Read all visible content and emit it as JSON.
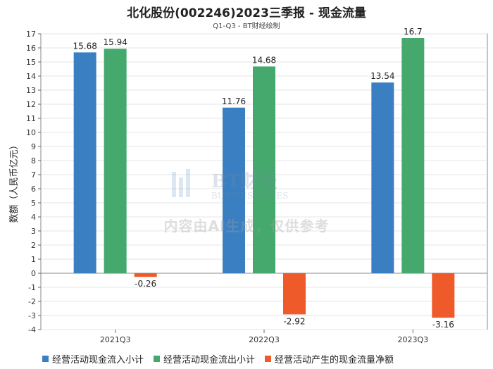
{
  "title": "北化股份(002246)2023三季报 - 现金流量",
  "subtitle": "Q1-Q3 - BT财经绘制",
  "watermark": {
    "logo_text": "BT财经",
    "logo_sub": "BUSINESSTIMES",
    "notice": "内容由AI生成，仅供参考"
  },
  "colors": {
    "series0": "#3a7fc1",
    "series1": "#45a96e",
    "series2": "#ef5a2a"
  },
  "chart_data": {
    "type": "bar",
    "title": "北化股份(002246)2023三季报 - 现金流量",
    "subtitle": "Q1-Q3 - BT财经绘制",
    "categories": [
      "2021Q3",
      "2022Q3",
      "2023Q3"
    ],
    "series": [
      {
        "name": "经营活动现金流入小计",
        "values": [
          15.68,
          11.76,
          13.54
        ]
      },
      {
        "name": "经营活动现金流出小计",
        "values": [
          15.94,
          14.68,
          16.7
        ]
      },
      {
        "name": "经营活动产生的现金流量净额",
        "values": [
          -0.26,
          -2.92,
          -3.16
        ]
      }
    ],
    "xlabel": "",
    "ylabel": "数额（人民币亿元）",
    "ylim": [
      -4,
      17
    ],
    "yticks": [
      -4,
      -3,
      -2,
      -1,
      0,
      1,
      2,
      3,
      4,
      5,
      6,
      7,
      8,
      9,
      10,
      11,
      12,
      13,
      14,
      15,
      16,
      17
    ],
    "legend_position": "bottom"
  }
}
